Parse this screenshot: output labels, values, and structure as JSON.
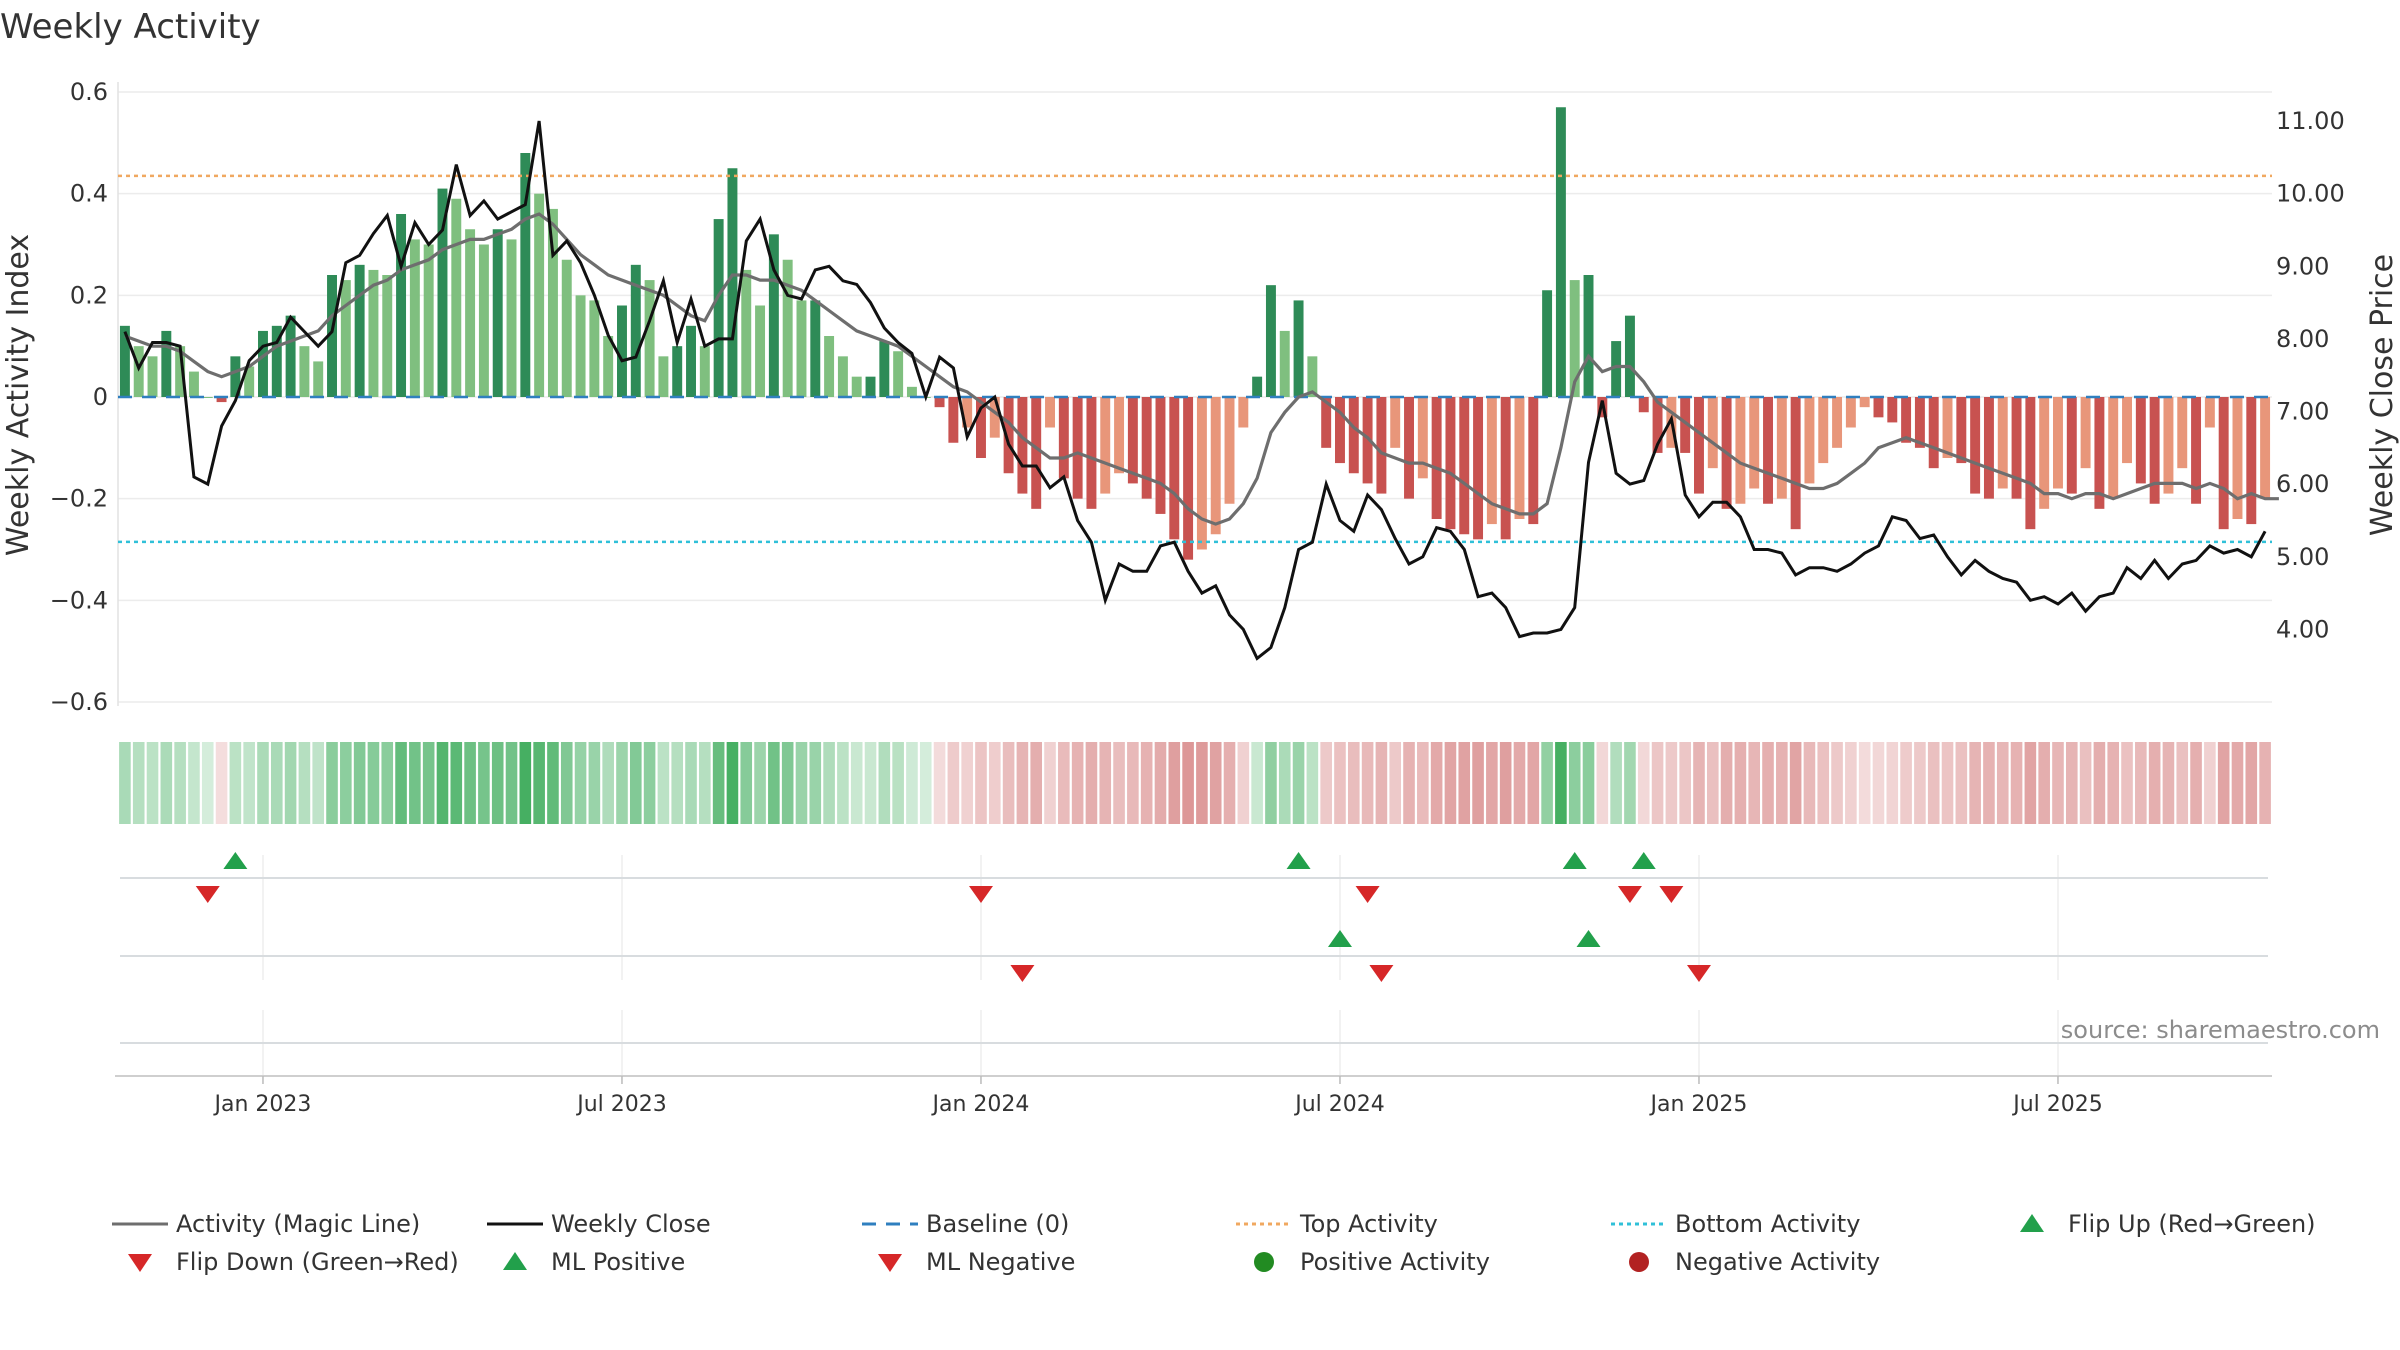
{
  "chart_data": {
    "type": "bar",
    "title": "Weekly Activity",
    "ylabel_left": "Weekly Activity Index",
    "ylabel_right": "Weekly Close Price",
    "source": "source: sharemaestro.com",
    "ylim_left": [
      -0.6,
      0.6
    ],
    "ylim_right": [
      3.0,
      11.4
    ],
    "y_ticks_left": [
      "0.6",
      "0.4",
      "0.2",
      "0",
      "−0.2",
      "−0.4",
      "−0.6"
    ],
    "y_ticks_left_values": [
      0.6,
      0.4,
      0.2,
      0,
      -0.2,
      -0.4,
      -0.6
    ],
    "y_ticks_right": [
      "11.00",
      "10.00",
      "9.00",
      "8.00",
      "7.00",
      "6.00",
      "5.00",
      "4.00"
    ],
    "y_ticks_right_values": [
      11,
      10,
      9,
      8,
      7,
      6,
      5,
      4
    ],
    "x_ticks": [
      "Jan 2023",
      "Jul 2023",
      "Jan 2024",
      "Jul 2024",
      "Jan 2025",
      "Jul 2025"
    ],
    "x_tick_weeks": [
      10,
      36,
      62,
      88,
      114,
      140
    ],
    "top_activity": 0.435,
    "bottom_activity": -0.285,
    "colors": {
      "green_dark": "#2e8b57",
      "green_light": "#7fbf7f",
      "red_dark": "#c85250",
      "red_light": "#e8967a",
      "magic_line": "#6e6e6e",
      "close_line": "#111111",
      "baseline": "#2f7fbf",
      "top_line": "#f0a860",
      "bottom_line": "#30c0d8",
      "flip_up": "#22a04b",
      "flip_down": "#d62728",
      "positive_dot": "#228b22",
      "negative_dot": "#b22222"
    },
    "activity": [
      0.14,
      0.1,
      0.08,
      0.13,
      0.1,
      0.05,
      0.0,
      -0.01,
      0.08,
      0.06,
      0.13,
      0.14,
      0.16,
      0.1,
      0.07,
      0.24,
      0.23,
      0.26,
      0.25,
      0.24,
      0.36,
      0.31,
      0.3,
      0.41,
      0.39,
      0.33,
      0.3,
      0.33,
      0.31,
      0.48,
      0.4,
      0.37,
      0.27,
      0.2,
      0.19,
      0.12,
      0.18,
      0.26,
      0.23,
      0.08,
      0.1,
      0.14,
      0.1,
      0.35,
      0.45,
      0.25,
      0.18,
      0.32,
      0.27,
      0.19,
      0.19,
      0.12,
      0.08,
      0.04,
      0.04,
      0.11,
      0.09,
      0.02,
      0.0,
      -0.02,
      -0.09,
      -0.06,
      -0.12,
      -0.08,
      -0.15,
      -0.19,
      -0.22,
      -0.06,
      -0.16,
      -0.2,
      -0.22,
      -0.19,
      -0.15,
      -0.17,
      -0.2,
      -0.23,
      -0.28,
      -0.32,
      -0.3,
      -0.27,
      -0.21,
      -0.06,
      0.04,
      0.22,
      0.13,
      0.19,
      0.08,
      -0.1,
      -0.13,
      -0.15,
      -0.17,
      -0.19,
      -0.1,
      -0.2,
      -0.16,
      -0.24,
      -0.26,
      -0.27,
      -0.28,
      -0.25,
      -0.28,
      -0.24,
      -0.25,
      0.21,
      0.57,
      0.23,
      0.24,
      -0.04,
      0.11,
      0.16,
      -0.03,
      -0.11,
      -0.1,
      -0.11,
      -0.19,
      -0.14,
      -0.22,
      -0.21,
      -0.18,
      -0.21,
      -0.2,
      -0.26,
      -0.17,
      -0.13,
      -0.1,
      -0.06,
      -0.02,
      -0.04,
      -0.05,
      -0.09,
      -0.1,
      -0.14,
      -0.12,
      -0.13,
      -0.19,
      -0.2,
      -0.18,
      -0.2,
      -0.26,
      -0.22,
      -0.18,
      -0.19,
      -0.14,
      -0.22,
      -0.2,
      -0.13,
      -0.17,
      -0.21,
      -0.19,
      -0.14,
      -0.21,
      -0.06,
      -0.26,
      -0.24,
      -0.25,
      -0.2
    ],
    "magic_line": [
      0.12,
      0.11,
      0.1,
      0.1,
      0.09,
      0.07,
      0.05,
      0.04,
      0.05,
      0.06,
      0.08,
      0.1,
      0.11,
      0.12,
      0.13,
      0.16,
      0.18,
      0.2,
      0.22,
      0.23,
      0.25,
      0.26,
      0.27,
      0.29,
      0.3,
      0.31,
      0.31,
      0.32,
      0.33,
      0.35,
      0.36,
      0.34,
      0.31,
      0.28,
      0.26,
      0.24,
      0.23,
      0.22,
      0.21,
      0.2,
      0.18,
      0.16,
      0.15,
      0.2,
      0.24,
      0.24,
      0.23,
      0.23,
      0.22,
      0.21,
      0.19,
      0.17,
      0.15,
      0.13,
      0.12,
      0.11,
      0.1,
      0.08,
      0.06,
      0.04,
      0.02,
      0.01,
      -0.01,
      -0.03,
      -0.05,
      -0.08,
      -0.1,
      -0.12,
      -0.12,
      -0.11,
      -0.12,
      -0.13,
      -0.14,
      -0.15,
      -0.16,
      -0.17,
      -0.19,
      -0.22,
      -0.24,
      -0.25,
      -0.24,
      -0.21,
      -0.16,
      -0.07,
      -0.03,
      0.0,
      0.01,
      -0.01,
      -0.03,
      -0.06,
      -0.08,
      -0.11,
      -0.12,
      -0.13,
      -0.13,
      -0.14,
      -0.15,
      -0.17,
      -0.19,
      -0.21,
      -0.22,
      -0.23,
      -0.23,
      -0.21,
      -0.1,
      0.03,
      0.08,
      0.05,
      0.06,
      0.06,
      0.03,
      -0.01,
      -0.03,
      -0.05,
      -0.07,
      -0.09,
      -0.11,
      -0.13,
      -0.14,
      -0.15,
      -0.16,
      -0.17,
      -0.18,
      -0.18,
      -0.17,
      -0.15,
      -0.13,
      -0.1,
      -0.09,
      -0.08,
      -0.09,
      -0.1,
      -0.11,
      -0.12,
      -0.13,
      -0.14,
      -0.15,
      -0.16,
      -0.17,
      -0.19,
      -0.19,
      -0.2,
      -0.19,
      -0.19,
      -0.2,
      -0.19,
      -0.18,
      -0.17,
      -0.17,
      -0.17,
      -0.18,
      -0.17,
      -0.18,
      -0.2,
      -0.19,
      -0.2,
      -0.2
    ],
    "weekly_close": [
      8.1,
      7.6,
      7.95,
      7.95,
      7.9,
      6.1,
      6.0,
      6.8,
      7.15,
      7.7,
      7.9,
      7.95,
      8.3,
      8.1,
      7.9,
      8.1,
      9.05,
      9.15,
      9.45,
      9.7,
      9.0,
      9.6,
      9.3,
      9.5,
      10.4,
      9.7,
      9.9,
      9.65,
      9.75,
      9.85,
      11.0,
      9.15,
      9.35,
      9.05,
      8.6,
      8.05,
      7.7,
      7.75,
      8.25,
      8.8,
      7.95,
      8.55,
      7.9,
      8.0,
      8.0,
      9.35,
      9.65,
      8.95,
      8.6,
      8.55,
      8.95,
      9.0,
      8.8,
      8.75,
      8.5,
      8.15,
      7.95,
      7.8,
      7.2,
      7.75,
      7.6,
      6.65,
      7.05,
      7.2,
      6.55,
      6.25,
      6.25,
      5.95,
      6.1,
      5.5,
      5.2,
      4.4,
      4.9,
      4.8,
      4.8,
      5.15,
      5.2,
      4.8,
      4.5,
      4.6,
      4.2,
      4.0,
      3.6,
      3.75,
      4.3,
      5.1,
      5.2,
      6.0,
      5.5,
      5.35,
      5.85,
      5.65,
      5.25,
      4.9,
      5.0,
      5.4,
      5.35,
      5.1,
      4.45,
      4.5,
      4.3,
      3.9,
      3.95,
      3.95,
      4.0,
      4.3,
      6.3,
      7.15,
      6.15,
      6.0,
      6.05,
      6.55,
      6.9,
      5.85,
      5.55,
      5.75,
      5.75,
      5.55,
      5.1,
      5.1,
      5.05,
      4.75,
      4.85,
      4.85,
      4.8,
      4.9,
      5.05,
      5.15,
      5.55,
      5.5,
      5.25,
      5.3,
      5.0,
      4.75,
      4.95,
      4.8,
      4.7,
      4.65,
      4.4,
      4.45,
      4.35,
      4.5,
      4.25,
      4.45,
      4.5,
      4.85,
      4.7,
      4.95,
      4.7,
      4.9,
      4.95,
      5.15,
      5.05,
      5.1,
      5.0,
      5.35
    ],
    "ml_markers": {
      "row1_up": [
        8,
        85,
        105,
        110
      ],
      "row1_down": [
        6,
        62,
        90,
        109,
        112
      ],
      "row2_up": [
        88,
        106
      ],
      "row2_down": [
        65,
        91,
        114
      ]
    },
    "legend": [
      {
        "label": "Activity (Magic Line)",
        "symbol": "line-grey"
      },
      {
        "label": "Weekly Close",
        "symbol": "line-black"
      },
      {
        "label": "Baseline (0)",
        "symbol": "dash-blue"
      },
      {
        "label": "Top Activity",
        "symbol": "dot-orange"
      },
      {
        "label": "Bottom Activity",
        "symbol": "dot-cyan"
      },
      {
        "label": "Flip Up (Red→Green)",
        "symbol": "triangle-up-green"
      },
      {
        "label": "Flip Down (Green→Red)",
        "symbol": "triangle-down-red"
      },
      {
        "label": "ML Positive",
        "symbol": "triangle-up-green"
      },
      {
        "label": "ML Negative",
        "symbol": "triangle-down-red"
      },
      {
        "label": "Positive Activity",
        "symbol": "circle-green"
      },
      {
        "label": "Negative Activity",
        "symbol": "circle-red"
      }
    ]
  }
}
